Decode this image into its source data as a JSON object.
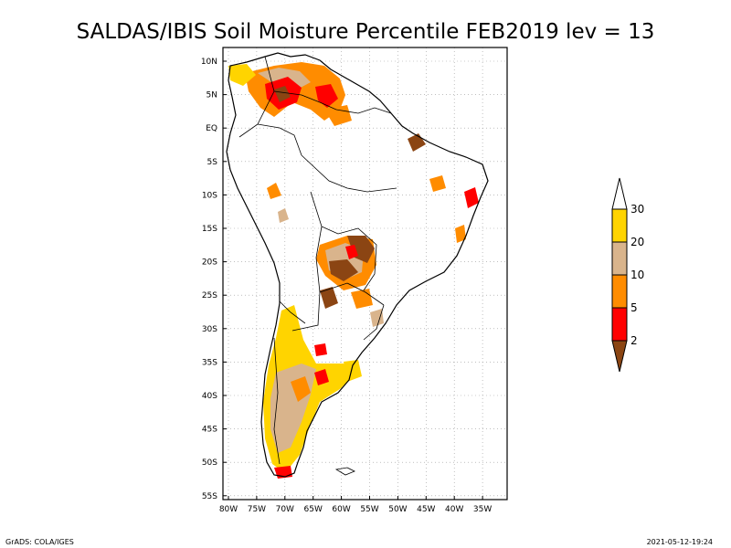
{
  "title": "SALDAS/IBIS Soil Moisture Percentile FEB2019 lev = 13",
  "footer_left": "GrADS: COLA/IGES",
  "footer_right": "2021-05-12-19:24",
  "lat_ticks": [
    "10N",
    "5N",
    "EQ",
    "5S",
    "10S",
    "15S",
    "20S",
    "25S",
    "30S",
    "35S",
    "40S",
    "45S",
    "50S",
    "55S"
  ],
  "lon_ticks": [
    "80W",
    "75W",
    "70W",
    "65W",
    "60W",
    "55W",
    "50W",
    "45W",
    "40W",
    "35W"
  ],
  "colorbar": {
    "labels": [
      "30",
      "20",
      "10",
      "5",
      "2"
    ],
    "colors": [
      "#ffffff",
      "#ffd400",
      "#d9b48c",
      "#ff8c00",
      "#ff0000",
      "#8b4513"
    ]
  },
  "colors": {
    "brown": "#8b4513",
    "red": "#ff0000",
    "orange": "#ff8c00",
    "tan": "#d9b48c",
    "yellow": "#ffd400"
  }
}
